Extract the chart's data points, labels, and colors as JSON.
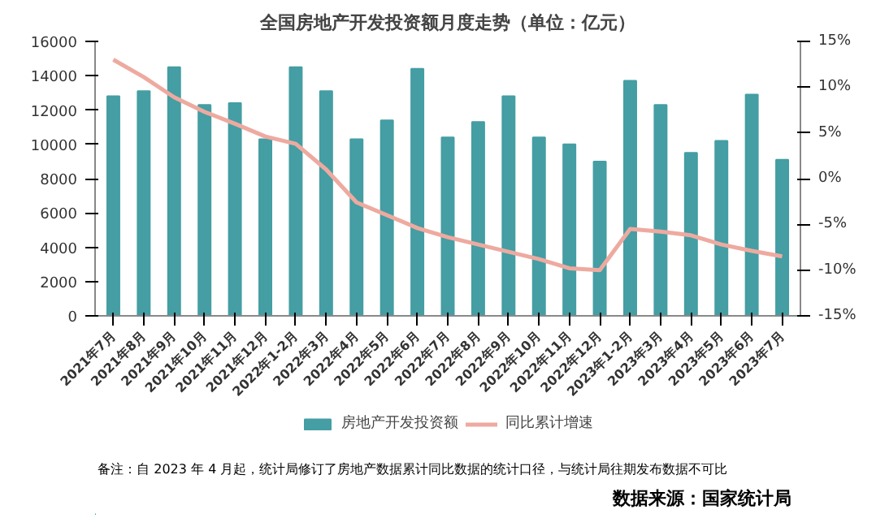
{
  "chart_data": {
    "type": "bar",
    "title": "全国房地产开发投资额月度走势（单位：亿元）",
    "categories": [
      "2021年7月",
      "2021年8月",
      "2021年9月",
      "2021年10月",
      "2021年11月",
      "2021年12月",
      "2022年1-2月",
      "2022年3月",
      "2022年4月",
      "2022年5月",
      "2022年6月",
      "2022年7月",
      "2022年8月",
      "2022年9月",
      "2022年10月",
      "2022年11月",
      "2022年12月",
      "2023年1-2月",
      "2023年3月",
      "2023年4月",
      "2023年5月",
      "2023年6月",
      "2023年7月"
    ],
    "series": [
      {
        "name": "房地产开发投资额",
        "color": "#449ea3",
        "values": [
          12800,
          13100,
          14500,
          12300,
          12400,
          10300,
          14500,
          13100,
          10300,
          11400,
          14400,
          10400,
          11300,
          12800,
          10400,
          10000,
          9000,
          13700,
          12300,
          9500,
          10200,
          12900,
          9100
        ]
      },
      {
        "name": "同比累计增速",
        "type": "line",
        "axis": "y2",
        "color": "#eeaaa0",
        "values": [
          13.0,
          11.1,
          8.9,
          7.3,
          6.0,
          4.6,
          3.8,
          1.0,
          -2.6,
          -4.0,
          -5.4,
          -6.4,
          -7.2,
          -8.0,
          -8.8,
          -9.8,
          -10.0,
          -5.5,
          -5.8,
          -6.2,
          -7.2,
          -7.9,
          -8.5
        ]
      }
    ],
    "ylim": [
      0,
      16000
    ],
    "yticks": [
      0,
      2000,
      4000,
      6000,
      8000,
      10000,
      12000,
      14000,
      16000
    ],
    "y2lim": [
      -15,
      15
    ],
    "y2ticks": [
      {
        "value": -15,
        "label": "-15%"
      },
      {
        "value": -10,
        "label": "-10%"
      },
      {
        "value": -5,
        "label": "-5%"
      },
      {
        "value": 0,
        "label": "0%"
      },
      {
        "value": 5,
        "label": "5%"
      },
      {
        "value": 10,
        "label": "10%"
      },
      {
        "value": 15,
        "label": "15%"
      }
    ],
    "grid": false,
    "legend": "bottom",
    "annotations": [
      "备注：自 2023 年 4 月起，统计局修订了房地产数据累计同比数据的统计口径，与统计局往期发布数据不可比",
      "数据来源：国家统计局"
    ]
  }
}
